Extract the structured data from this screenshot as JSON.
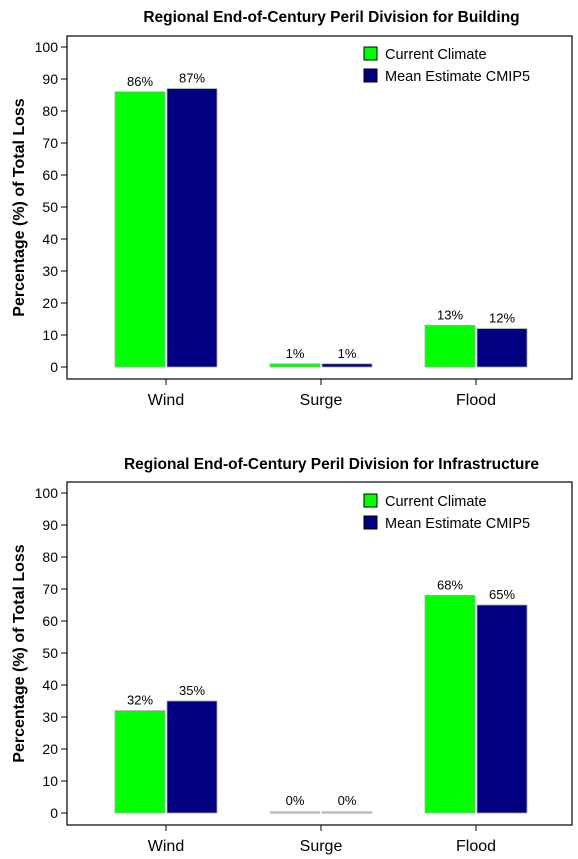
{
  "chart_data": [
    {
      "type": "bar",
      "title": "Regional End-of-Century Peril Division for Building",
      "ylabel": "Percentage (%) of Total Loss",
      "xlabel": "",
      "categories": [
        "Wind",
        "Surge",
        "Flood"
      ],
      "ylim": [
        0,
        100
      ],
      "yticks": [
        0,
        10,
        20,
        30,
        40,
        50,
        60,
        70,
        80,
        90,
        100
      ],
      "series": [
        {
          "name": "Current Climate",
          "color": "#00ff00",
          "values": [
            86,
            1,
            13
          ],
          "labels": [
            "86%",
            "1%",
            "13%"
          ]
        },
        {
          "name": "Mean Estimate CMIP5",
          "color": "#000080",
          "values": [
            87,
            1,
            12
          ],
          "labels": [
            "87%",
            "1%",
            "12%"
          ]
        }
      ],
      "legend": "top-right",
      "grid": false
    },
    {
      "type": "bar",
      "title": "Regional End-of-Century Peril Division for Infrastructure",
      "ylabel": "Percentage (%) of Total Loss",
      "xlabel": "",
      "categories": [
        "Wind",
        "Surge",
        "Flood"
      ],
      "ylim": [
        0,
        100
      ],
      "yticks": [
        0,
        10,
        20,
        30,
        40,
        50,
        60,
        70,
        80,
        90,
        100
      ],
      "series": [
        {
          "name": "Current Climate",
          "color": "#00ff00",
          "values": [
            32,
            0,
            68
          ],
          "labels": [
            "32%",
            "0%",
            "68%"
          ]
        },
        {
          "name": "Mean Estimate CMIP5",
          "color": "#000080",
          "values": [
            35,
            0,
            65
          ],
          "labels": [
            "35%",
            "0%",
            "65%"
          ]
        }
      ],
      "legend": "top-right",
      "grid": false
    }
  ]
}
